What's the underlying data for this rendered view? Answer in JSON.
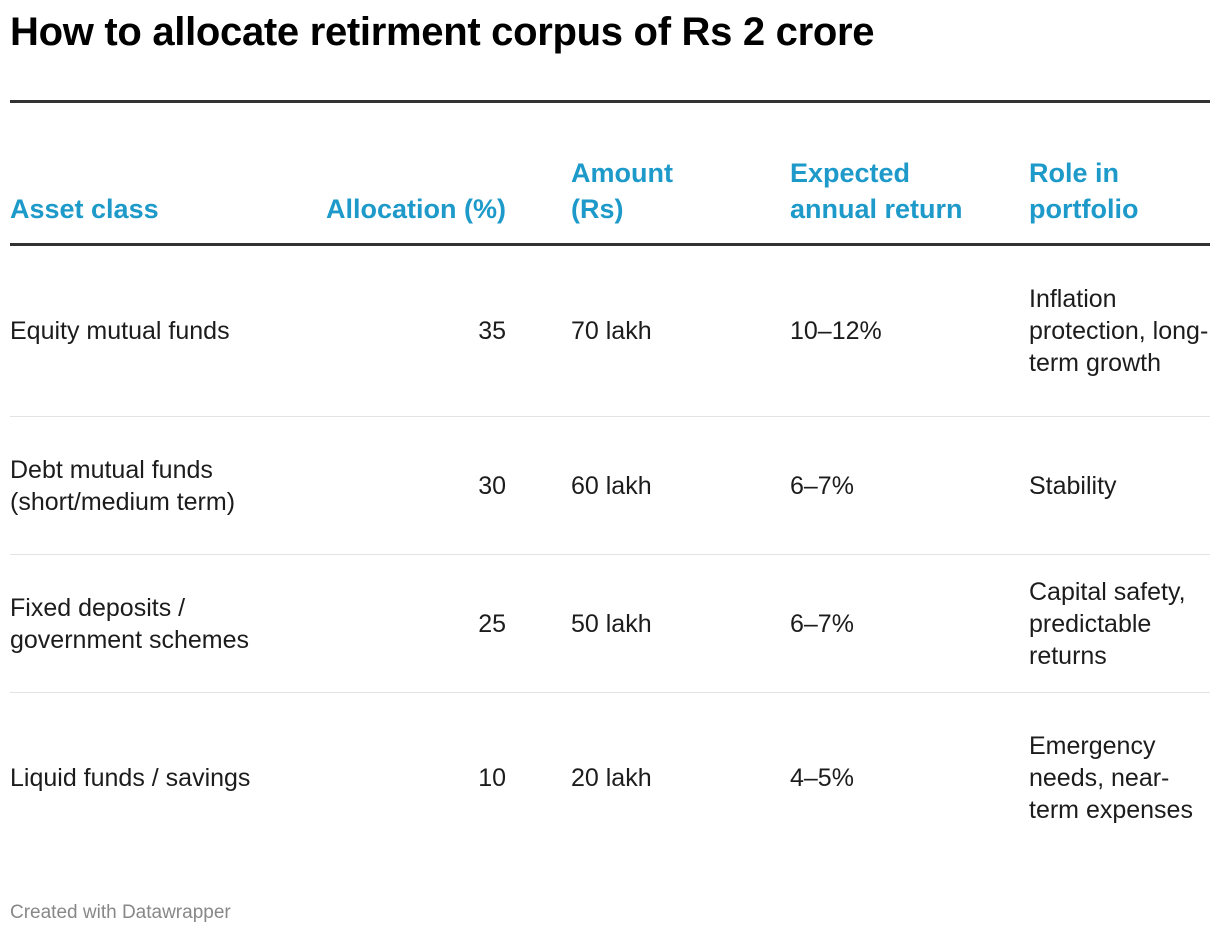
{
  "chart_data": {
    "type": "table",
    "title": "How to allocate retirment corpus of Rs 2 crore",
    "columns": [
      {
        "key": "asset",
        "label": "Asset class"
      },
      {
        "key": "alloc",
        "label": "Allocation (%)"
      },
      {
        "key": "amount",
        "label": "Amount (Rs)"
      },
      {
        "key": "ret",
        "label": "Expected annual return"
      },
      {
        "key": "role",
        "label": "Role in portfolio"
      }
    ],
    "rows": [
      {
        "asset": "Equity mutual funds",
        "alloc": 35,
        "amount": "70 lakh",
        "ret": "10–12%",
        "role": "Inflation protection, long-term growth"
      },
      {
        "asset": "Debt mutual funds (short/medium term)",
        "alloc": 30,
        "amount": "60 lakh",
        "ret": "6–7%",
        "role": "Stability"
      },
      {
        "asset": "Fixed deposits / government schemes",
        "alloc": 25,
        "amount": "50 lakh",
        "ret": "6–7%",
        "role": "Capital safety, predictable returns"
      },
      {
        "asset": "Liquid funds / savings",
        "alloc": 10,
        "amount": "20 lakh",
        "ret": "4–5%",
        "role": "Emergency needs, near-term expenses"
      }
    ]
  },
  "footer": {
    "credit": "Created with Datawrapper"
  },
  "colors": {
    "header_text": "#1d9ac9",
    "title_text": "#000000",
    "body_text": "#1c1c1c",
    "rule": "#333333",
    "row_separator": "#e3e3e3",
    "footer_text": "#888888"
  }
}
